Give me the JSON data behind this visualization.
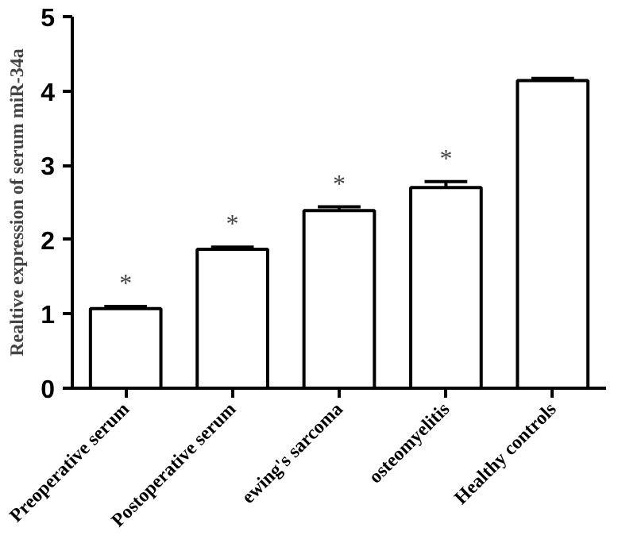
{
  "chart_data": {
    "type": "bar",
    "ylabel": "Realtive expression of serum miR-34a",
    "categories": [
      "Preoperative serum",
      "Postoperative serum",
      "ewing's sarcoma",
      "osteomyelitis",
      "Healthy controls"
    ],
    "values": [
      1.07,
      1.87,
      2.39,
      2.7,
      4.14
    ],
    "errors": [
      0.03,
      0.03,
      0.05,
      0.08,
      0.03
    ],
    "color": "#ffffff",
    "ylim": [
      0,
      5
    ],
    "yticks": [
      0,
      1,
      2,
      3,
      4,
      5
    ],
    "grid": false,
    "annotations": [
      "*",
      "*",
      "*",
      "*"
    ]
  }
}
